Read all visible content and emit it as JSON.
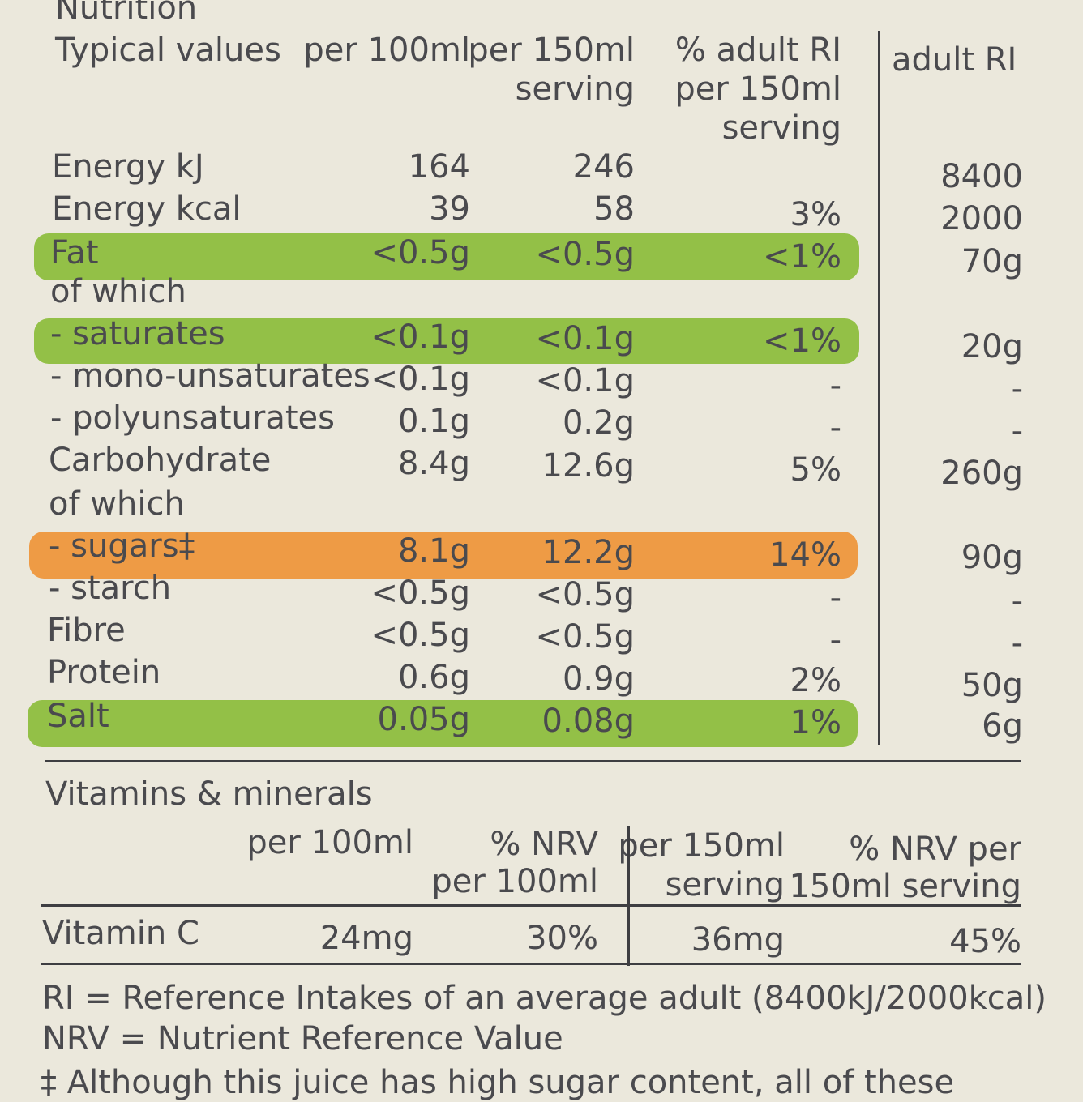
{
  "nutrition": {
    "title": "Nutrition",
    "headers": {
      "label": "Typical values",
      "per100_l1": "per 100ml",
      "per150_l1": "per 150ml",
      "per150_l2": "serving",
      "ri_l1": "% adult RI",
      "ri_l2": "per 150ml",
      "ri_l3": "serving",
      "adult_ri": "adult RI"
    },
    "rows": [
      {
        "label": "Energy kJ",
        "per100": "164",
        "per150": "246",
        "ri_pct": "",
        "adult_ri": "8400"
      },
      {
        "label": "Energy kcal",
        "per100": "39",
        "per150": "58",
        "ri_pct": "3%",
        "adult_ri": "2000"
      },
      {
        "label": "Fat",
        "per100": "<0.5g",
        "per150": "<0.5g",
        "ri_pct": "<1%",
        "adult_ri": "70g",
        "highlight": "green"
      },
      {
        "label": "of which",
        "per100": "",
        "per150": "",
        "ri_pct": "",
        "adult_ri": ""
      },
      {
        "label": "- saturates",
        "per100": "<0.1g",
        "per150": "<0.1g",
        "ri_pct": "<1%",
        "adult_ri": "20g",
        "highlight": "green"
      },
      {
        "label": "- mono-unsaturates",
        "per100": "<0.1g",
        "per150": "<0.1g",
        "ri_pct": "-",
        "adult_ri": "-"
      },
      {
        "label": "- polyunsaturates",
        "per100": "0.1g",
        "per150": "0.2g",
        "ri_pct": "-",
        "adult_ri": "-"
      },
      {
        "label": "Carbohydrate",
        "per100": "8.4g",
        "per150": "12.6g",
        "ri_pct": "5%",
        "adult_ri": "260g"
      },
      {
        "label": "of which",
        "per100": "",
        "per150": "",
        "ri_pct": "",
        "adult_ri": ""
      },
      {
        "label": "- sugars‡",
        "per100": "8.1g",
        "per150": "12.2g",
        "ri_pct": "14%",
        "adult_ri": "90g",
        "highlight": "orange"
      },
      {
        "label": "- starch",
        "per100": "<0.5g",
        "per150": "<0.5g",
        "ri_pct": "-",
        "adult_ri": "-"
      },
      {
        "label": "Fibre",
        "per100": "<0.5g",
        "per150": "<0.5g",
        "ri_pct": "-",
        "adult_ri": "-"
      },
      {
        "label": "Protein",
        "per100": "0.6g",
        "per150": "0.9g",
        "ri_pct": "2%",
        "adult_ri": "50g"
      },
      {
        "label": "Salt",
        "per100": "0.05g",
        "per150": "0.08g",
        "ri_pct": "1%",
        "adult_ri": "6g",
        "highlight": "green"
      }
    ]
  },
  "vitamins": {
    "title": "Vitamins & minerals",
    "headers": {
      "per100": "per 100ml",
      "nrv100_l1": "% NRV",
      "nrv100_l2": "per 100ml",
      "per150_l1": "per 150ml",
      "per150_l2": "serving",
      "nrv150_l1": "% NRV per",
      "nrv150_l2": "150ml serving"
    },
    "rows": [
      {
        "label": "Vitamin C",
        "per100": "24mg",
        "nrv100": "30%",
        "per150": "36mg",
        "nrv150": "45%"
      }
    ]
  },
  "footnotes": {
    "ri": "RI = Reference Intakes of an average adult (8400kJ/2000kcal)",
    "nrv": "NRV = Nutrient Reference Value",
    "sugar_note": "‡ Although this juice has high sugar content, all of these"
  },
  "colors": {
    "green_highlight": "#93c047",
    "orange_highlight": "#ee9b45",
    "ink": "#4a4a4e",
    "background": "#ebe8dc"
  }
}
